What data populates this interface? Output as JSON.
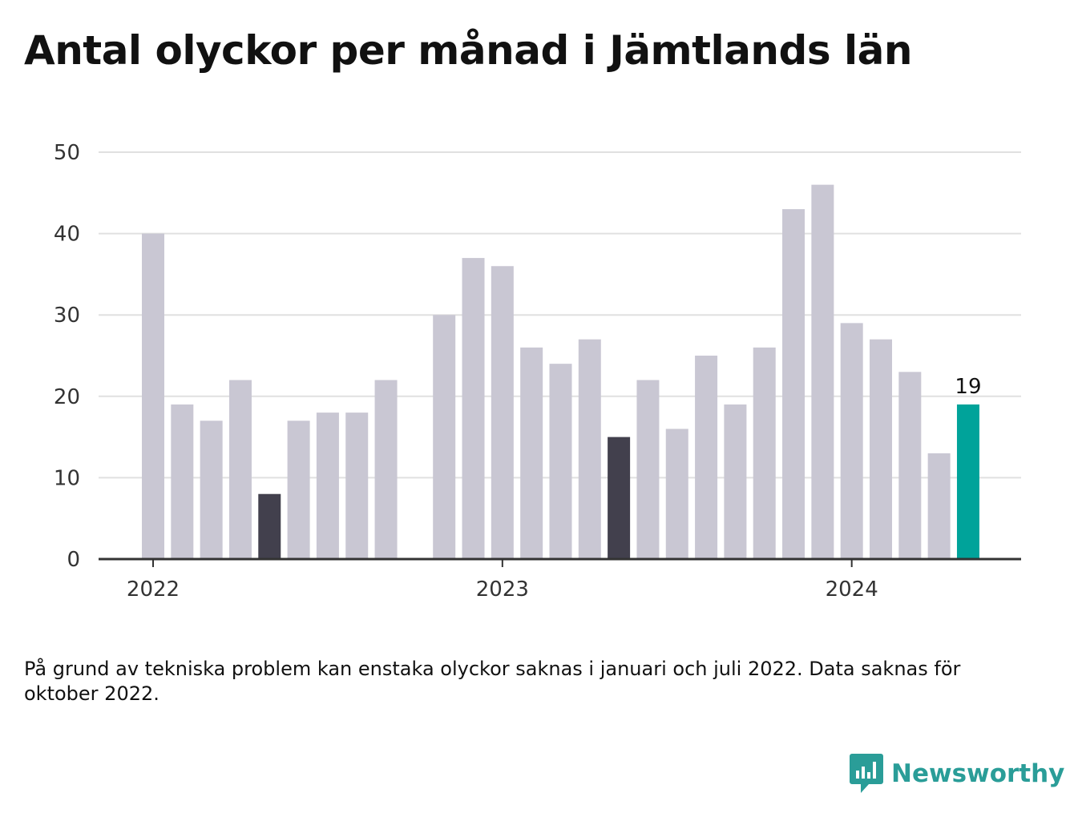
{
  "title": "Antal olyckor per månad i Jämtlands län",
  "note": "På grund av tekniska problem kan enstaka olyckor saknas i januari och juli 2022. Data saknas för oktober 2022.",
  "brand": {
    "name": "Newsworthy",
    "icon": "bar-chart-speech-bubble-icon"
  },
  "colors": {
    "default": "#c9c7d3",
    "highlight": "#42404d",
    "latest": "#00a39a",
    "axis": "#333333",
    "grid": "#e0e0e0"
  },
  "chart_data": {
    "type": "bar",
    "title": "Antal olyckor per månad i Jämtlands län",
    "xlabel": "",
    "ylabel": "",
    "ylim": [
      0,
      50
    ],
    "yticks": [
      0,
      10,
      20,
      30,
      40,
      50
    ],
    "xticks": [
      "2022",
      "2023",
      "2024"
    ],
    "grid": true,
    "categories": [
      "2022-01",
      "2022-02",
      "2022-03",
      "2022-04",
      "2022-05",
      "2022-06",
      "2022-07",
      "2022-08",
      "2022-09",
      "2022-10",
      "2022-11",
      "2022-12",
      "2023-01",
      "2023-02",
      "2023-03",
      "2023-04",
      "2023-05",
      "2023-06",
      "2023-07",
      "2023-08",
      "2023-09",
      "2023-10",
      "2023-11",
      "2023-12",
      "2024-01",
      "2024-02",
      "2024-03",
      "2024-04",
      "2024-05"
    ],
    "values": [
      40,
      19,
      17,
      22,
      8,
      17,
      18,
      18,
      22,
      null,
      30,
      37,
      36,
      26,
      24,
      27,
      15,
      22,
      16,
      25,
      19,
      26,
      43,
      46,
      29,
      27,
      23,
      13,
      19
    ],
    "highlighted": [
      "2022-05",
      "2023-05"
    ],
    "latest": "2024-05",
    "data_labels": [
      {
        "category": "2024-05",
        "text": "19"
      }
    ]
  }
}
